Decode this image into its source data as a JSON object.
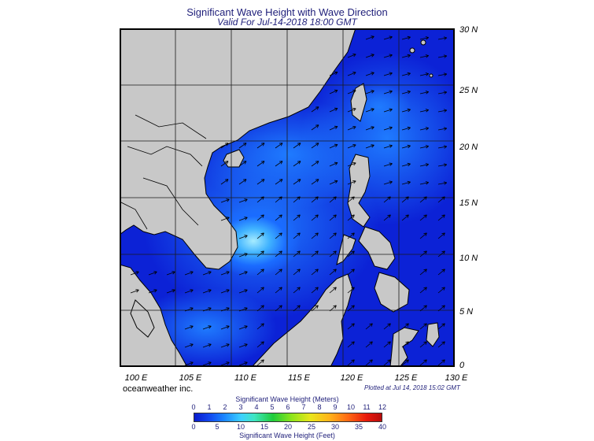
{
  "title": "Significant Wave Height with Wave Direction",
  "subtitle": "Valid For Jul-14-2018 18:00 GMT",
  "lat_labels": [
    "30 N",
    "25 N",
    "20 N",
    "15 N",
    "10 N",
    "5 N",
    "0"
  ],
  "lon_labels": [
    "100 E",
    "105 E",
    "110 E",
    "115 E",
    "120 E",
    "125 E",
    "130 E"
  ],
  "credit": "oceanweather inc.",
  "plotted": "Plotted at Jul 14, 2018 15:02 GMT",
  "colorbar": {
    "title_meters": "Significant Wave Height (Meters)",
    "title_feet": "Significant Wave Height (Feet)",
    "meters_ticks": [
      "0",
      "1",
      "2",
      "3",
      "4",
      "5",
      "6",
      "7",
      "8",
      "9",
      "10",
      "11",
      "12"
    ],
    "feet_ticks": [
      "0",
      "5",
      "10",
      "15",
      "20",
      "25",
      "30",
      "35",
      "40"
    ]
  },
  "colors": {
    "land": "#c8c8c8",
    "deep": "#0a1bcc",
    "max": "#9fe8ff",
    "title": "#1f1f7a"
  }
}
